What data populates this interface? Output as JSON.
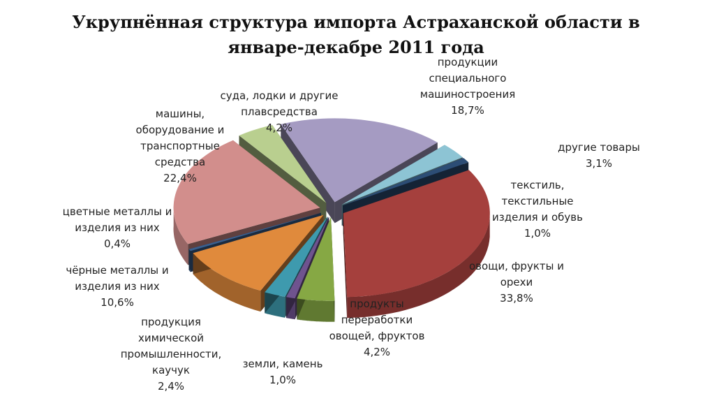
{
  "title_lines": [
    "Укрупнённая структура импорта Астраханской области в",
    "январе-декабре 2011 года"
  ],
  "chart_data": {
    "type": "pie",
    "title": "Укрупнённая структура импорта Астраханской области в январе-декабре 2011 года",
    "exploded": true,
    "three_d": true,
    "slices": [
      {
        "key": "spec",
        "label_lines": [
          "продукции",
          "специального",
          "машиностроения"
        ],
        "value_text": "18,7%",
        "value": 18.7,
        "color": "#A59BC2"
      },
      {
        "key": "other",
        "label_lines": [
          "другие товары"
        ],
        "value_text": "3,1%",
        "value": 3.1,
        "color": "#8DC4D4"
      },
      {
        "key": "textile",
        "label_lines": [
          "текстиль,",
          "текстильные",
          "изделия и обувь"
        ],
        "value_text": "1,0%",
        "value": 1.0,
        "color": "#2C4D75"
      },
      {
        "key": "veg",
        "label_lines": [
          "овощи, фрукты и",
          "орехи"
        ],
        "value_text": "33,8%",
        "value": 33.8,
        "color": "#A5403D"
      },
      {
        "key": "proc",
        "label_lines": [
          "продукты",
          "переработки",
          "овощей, фруктов"
        ],
        "value_text": "4,2%",
        "value": 4.2,
        "color": "#86A844"
      },
      {
        "key": "earth",
        "label_lines": [
          "земли, камень"
        ],
        "value_text": "1,0%",
        "value": 1.0,
        "color": "#6F538F"
      },
      {
        "key": "chem",
        "label_lines": [
          "продукция",
          "химической",
          "промышленности,",
          "каучук"
        ],
        "value_text": "2,4%",
        "value": 2.4,
        "color": "#3E9AAE"
      },
      {
        "key": "ferrous",
        "label_lines": [
          "чёрные металлы и",
          "изделия из них"
        ],
        "value_text": "10,6%",
        "value": 10.6,
        "color": "#E08A3C"
      },
      {
        "key": "nonferrous",
        "label_lines": [
          "цветные металлы и",
          "изделия из них"
        ],
        "value_text": "0,4%",
        "value": 0.4,
        "color": "#3A5F8E"
      },
      {
        "key": "machines",
        "label_lines": [
          "машины,",
          "оборудование и",
          "транспортные",
          "средства"
        ],
        "value_text": "22,4%",
        "value": 22.4,
        "color": "#D28E8C"
      },
      {
        "key": "ships",
        "label_lines": [
          "суда, лодки и другие",
          "плавсредства"
        ],
        "value_text": "4,2%",
        "value": 4.2,
        "color": "#B9CF8F"
      }
    ]
  }
}
